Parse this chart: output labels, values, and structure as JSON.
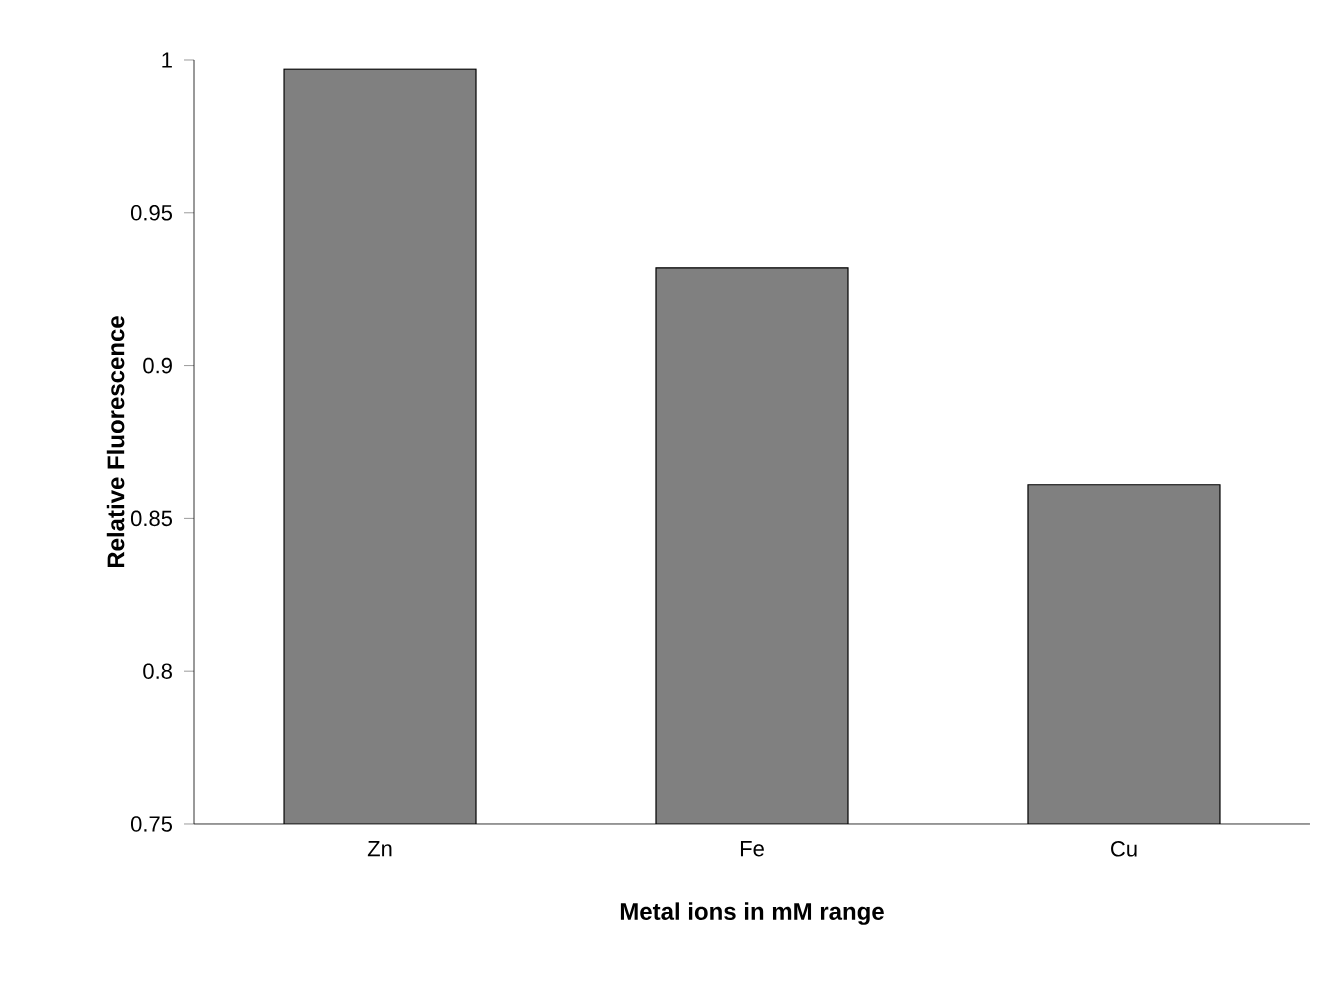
{
  "chart_data": {
    "type": "bar",
    "xlabel": "Metal ions in mM range",
    "ylabel": "Relative Fluorescence",
    "categories": [
      "Zn",
      "Fe",
      "Cu"
    ],
    "values": [
      0.997,
      0.932,
      0.861
    ],
    "color": "#808080",
    "ylim": [
      0.75,
      1
    ],
    "yticks": [
      0.75,
      0.8,
      0.85,
      0.9,
      0.95,
      1
    ],
    "grid": false
  }
}
